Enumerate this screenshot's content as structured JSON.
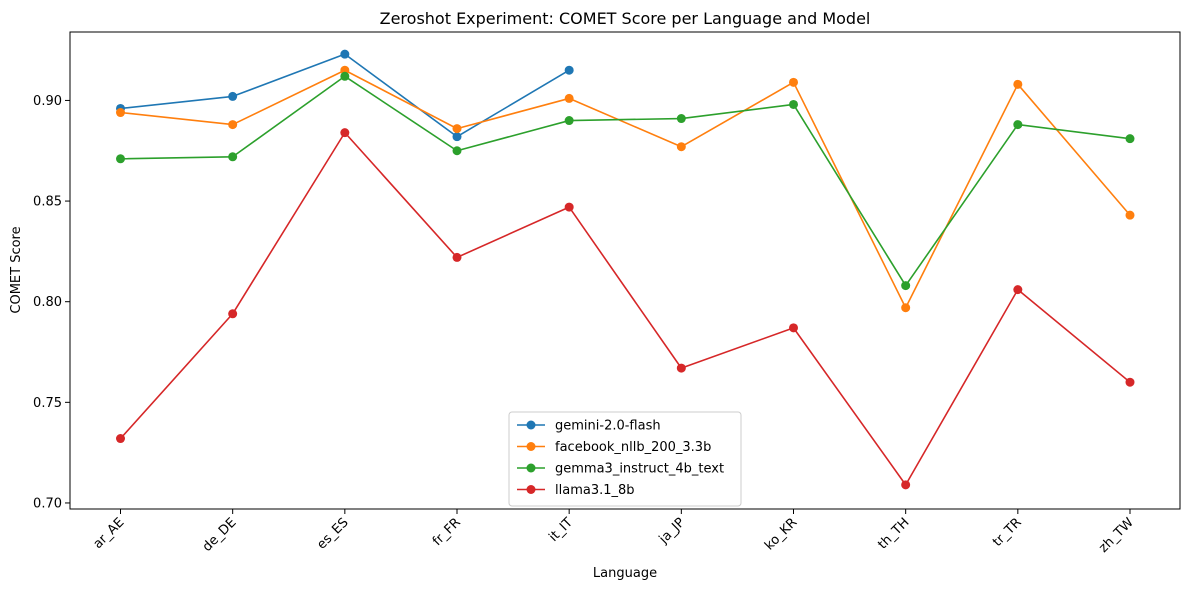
{
  "chart_data": {
    "type": "line",
    "title": "Zeroshot Experiment: COMET Score per Language and Model",
    "xlabel": "Language",
    "ylabel": "COMET Score",
    "categories": [
      "ar_AE",
      "de_DE",
      "es_ES",
      "fr_FR",
      "it_IT",
      "ja_JP",
      "ko_KR",
      "th_TH",
      "tr_TR",
      "zh_TW"
    ],
    "ylim": [
      0.697,
      0.934
    ],
    "yticks": [
      "0.70",
      "0.75",
      "0.80",
      "0.85",
      "0.90"
    ],
    "ytick_values": [
      0.7,
      0.75,
      0.8,
      0.85,
      0.9
    ],
    "grid": false,
    "legend_position": "bottom-center",
    "series": [
      {
        "name": "gemini-2.0-flash",
        "color": "#1f77b4",
        "values": [
          0.896,
          0.902,
          0.923,
          0.882,
          0.915,
          null,
          null,
          null,
          null,
          null
        ]
      },
      {
        "name": "facebook_nllb_200_3.3b",
        "color": "#ff7f0e",
        "values": [
          0.894,
          0.888,
          0.915,
          0.886,
          0.901,
          0.877,
          0.909,
          0.797,
          0.908,
          0.843
        ]
      },
      {
        "name": "gemma3_instruct_4b_text",
        "color": "#2ca02c",
        "values": [
          0.871,
          0.872,
          0.912,
          0.875,
          0.89,
          0.891,
          0.898,
          0.808,
          0.888,
          0.881
        ]
      },
      {
        "name": "llama3.1_8b",
        "color": "#d62728",
        "values": [
          0.732,
          0.794,
          0.884,
          0.822,
          0.847,
          0.767,
          0.787,
          0.709,
          0.806,
          0.76
        ]
      }
    ]
  }
}
